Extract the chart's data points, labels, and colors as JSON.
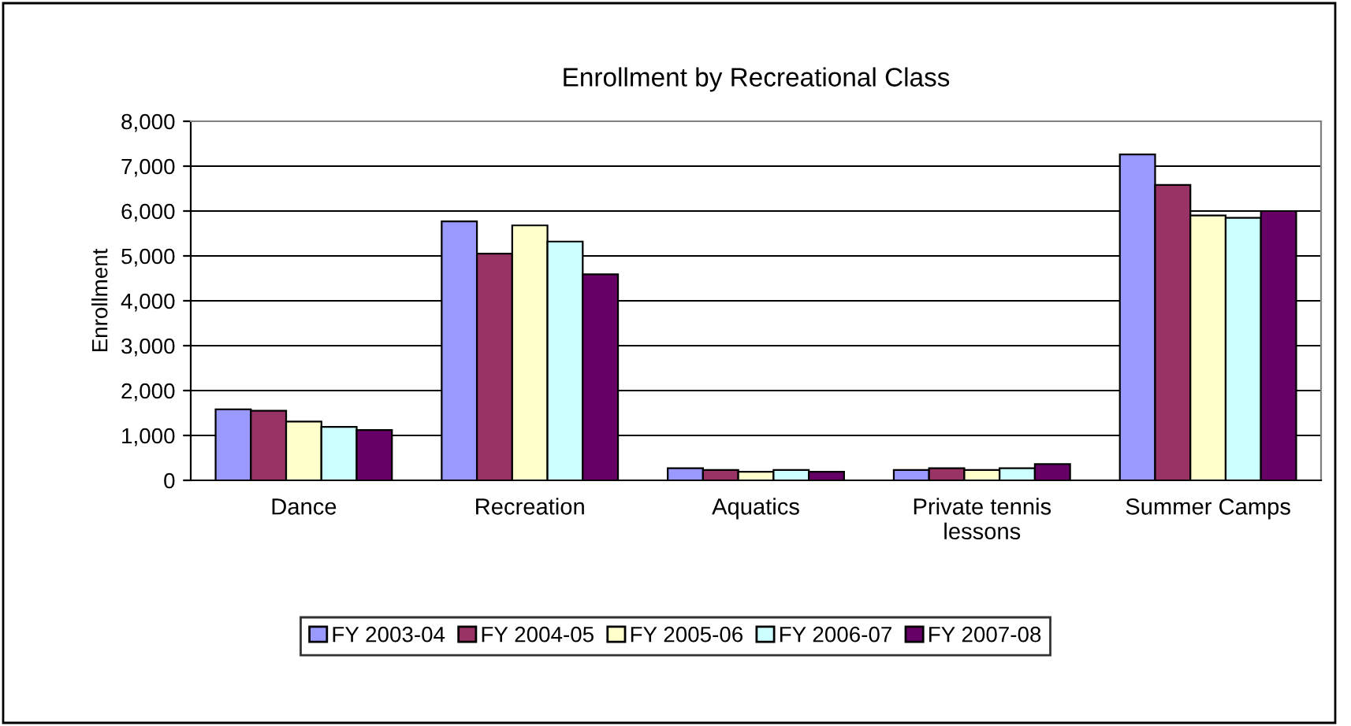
{
  "chart_data": {
    "type": "bar",
    "title": "Enrollment by Recreational Class",
    "ylabel": "Enrollment",
    "categories": [
      "Dance",
      "Recreation",
      "Aquatics",
      "Private tennis\nlessons",
      "Summer Camps"
    ],
    "series": [
      {
        "name": "FY 2003-04",
        "color": "#9999ff",
        "values": [
          1580,
          5770,
          270,
          230,
          7260
        ]
      },
      {
        "name": "FY 2004-05",
        "color": "#993366",
        "values": [
          1550,
          5050,
          230,
          270,
          6580
        ]
      },
      {
        "name": "FY 2005-06",
        "color": "#ffffcc",
        "values": [
          1310,
          5680,
          190,
          230,
          5900
        ]
      },
      {
        "name": "FY 2006-07",
        "color": "#ccffff",
        "values": [
          1190,
          5320,
          230,
          270,
          5850
        ]
      },
      {
        "name": "FY 2007-08",
        "color": "#660066",
        "values": [
          1120,
          4590,
          190,
          360,
          6000
        ]
      }
    ],
    "ylim": [
      0,
      8000
    ],
    "yticks": [
      {
        "value": 0,
        "label": "0"
      },
      {
        "value": 1000,
        "label": "1,000"
      },
      {
        "value": 2000,
        "label": "2,000"
      },
      {
        "value": 3000,
        "label": "3,000"
      },
      {
        "value": 4000,
        "label": "4,000"
      },
      {
        "value": 5000,
        "label": "5,000"
      },
      {
        "value": 6000,
        "label": "6,000"
      },
      {
        "value": 7000,
        "label": "7,000"
      },
      {
        "value": 8000,
        "label": "8,000"
      }
    ],
    "grid": "y",
    "legend": "bottom"
  }
}
